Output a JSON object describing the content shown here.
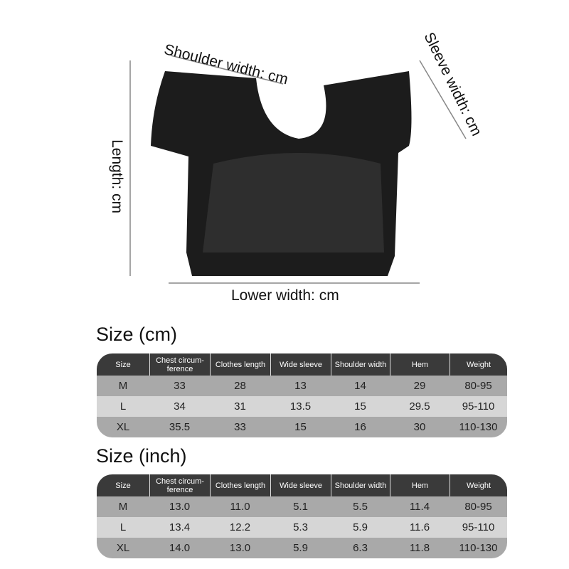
{
  "diagram": {
    "shoulder_label": "Shoulder width: cm",
    "sleeve_label": "Sleeve width: cm",
    "length_label": "Length: cm",
    "lower_label": "Lower width: cm"
  },
  "tables": [
    {
      "title": "Size (cm)",
      "headers": [
        "Size",
        "Chest circum-ference",
        "Clothes length",
        "Wide sleeve",
        "Shoulder width",
        "Hem",
        "Weight"
      ],
      "rows": [
        [
          "M",
          "33",
          "28",
          "13",
          "14",
          "29",
          "80-95"
        ],
        [
          "L",
          "34",
          "31",
          "13.5",
          "15",
          "29.5",
          "95-110"
        ],
        [
          "XL",
          "35.5",
          "33",
          "15",
          "16",
          "30",
          "110-130"
        ]
      ]
    },
    {
      "title": "Size (inch)",
      "headers": [
        "Size",
        "Chest circum-ference",
        "Clothes length",
        "Wide sleeve",
        "Shoulder width",
        "Hem",
        "Weight"
      ],
      "rows": [
        [
          "M",
          "13.0",
          "11.0",
          "5.1",
          "5.5",
          "11.4",
          "80-95"
        ],
        [
          "L",
          "13.4",
          "12.2",
          "5.3",
          "5.9",
          "11.6",
          "95-110"
        ],
        [
          "XL",
          "14.0",
          "13.0",
          "5.9",
          "6.3",
          "11.8",
          "110-130"
        ]
      ]
    }
  ]
}
